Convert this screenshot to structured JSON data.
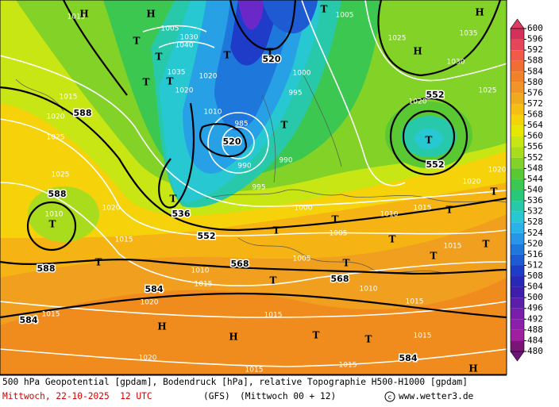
{
  "map": {
    "contour_labels": [
      "588",
      "588",
      "588",
      "568",
      "568",
      "584",
      "584",
      "584",
      "552",
      "552",
      "552",
      "536",
      "520",
      "520"
    ],
    "isobar_labels": [
      "1015",
      "1020",
      "1025",
      "1025",
      "1020",
      "1015",
      "1010",
      "1015",
      "1020",
      "1015",
      "1015",
      "1020",
      "1015",
      "1015",
      "1015",
      "1015",
      "1010",
      "1015",
      "1015",
      "1010",
      "1005",
      "1005",
      "1000",
      "995",
      "990",
      "990",
      "985",
      "995",
      "1000",
      "1010",
      "1020",
      "1020",
      "1035",
      "1040",
      "1030",
      "1005",
      "1025",
      "1030",
      "1035",
      "1025",
      "1020",
      "1020",
      "1020",
      "1005",
      "1010",
      "1015"
    ],
    "symbols": [
      "H",
      "H",
      "T",
      "T",
      "T",
      "T",
      "T",
      "T",
      "T",
      "H",
      "H",
      "T",
      "T",
      "T",
      "T",
      "T",
      "T",
      "T",
      "T",
      "T",
      "T",
      "T",
      "T",
      "T",
      "H",
      "H",
      "T",
      "T",
      "H",
      "T"
    ],
    "colorbar": {
      "ticks": [
        600,
        596,
        592,
        588,
        584,
        580,
        576,
        572,
        568,
        564,
        560,
        556,
        552,
        548,
        544,
        540,
        536,
        532,
        528,
        524,
        520,
        516,
        512,
        508,
        504,
        500,
        496,
        492,
        488,
        484,
        480
      ],
      "colors": [
        "#d2325a",
        "#e6465a",
        "#f05a46",
        "#f06e32",
        "#f08228",
        "#f09628",
        "#f0aa1e",
        "#f5be14",
        "#f5d20a",
        "#e6e600",
        "#c8e614",
        "#aadc1e",
        "#82d228",
        "#5ac832",
        "#3cc850",
        "#28c878",
        "#28c8aa",
        "#28c8d2",
        "#28b4e6",
        "#2896e6",
        "#1e78dc",
        "#1e5ad2",
        "#1e3cc8",
        "#2828b4",
        "#3c1eaa",
        "#5a1eaa",
        "#781eaa",
        "#8c1eaa",
        "#a01ea0",
        "#7a1478"
      ],
      "top_color": "#dc3c64",
      "bottom_color": "#6e1478"
    }
  },
  "footer": {
    "description": "500 hPa Geopotential [gpdam], Bodendruck [hPa], relative Topographie H500-H1000 [gpdam]",
    "date": "Mittwoch, 22-10-2025  12 UTC",
    "model": "(GFS)",
    "run": "(Mittwoch 00 + 12)",
    "source": "www.wetter3.de"
  }
}
